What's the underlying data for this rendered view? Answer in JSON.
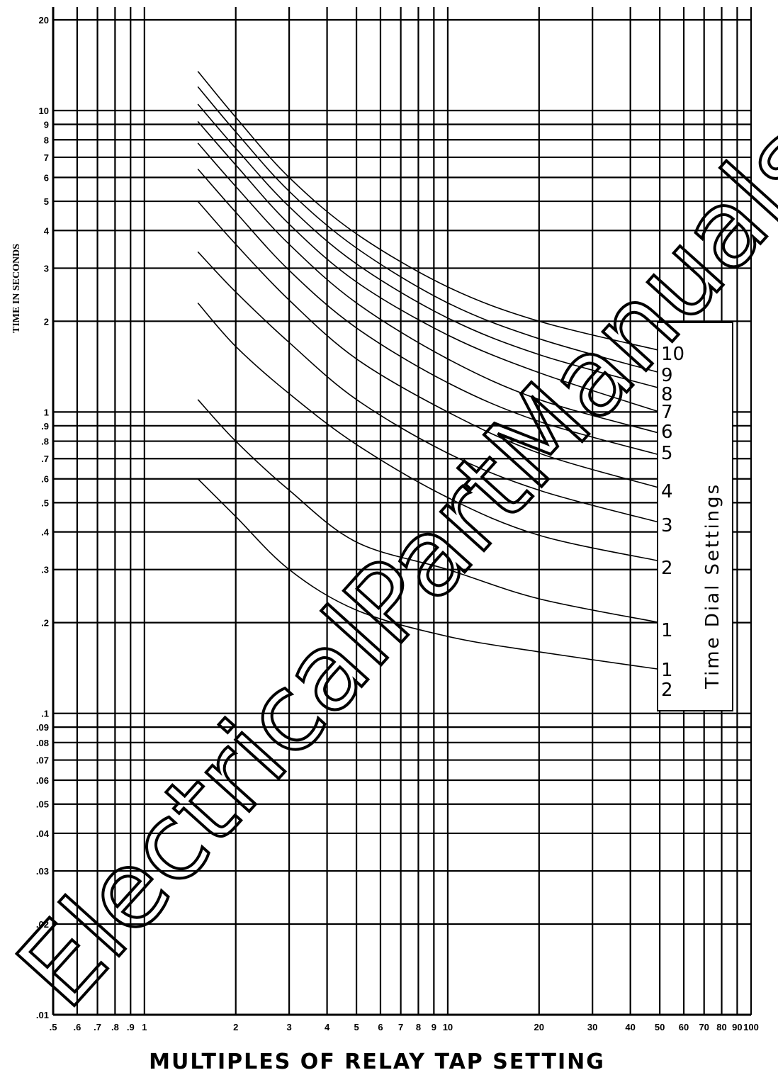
{
  "chart_data": {
    "type": "line",
    "title": "",
    "xlabel": "MULTIPLES OF RELAY TAP SETTING",
    "ylabel": "TIME IN SECONDS",
    "xscale": "log",
    "yscale": "log",
    "xlim": [
      0.5,
      100
    ],
    "ylim": [
      0.01,
      20
    ],
    "grid": true,
    "x_tick_labels": [
      ".5",
      ".6",
      ".7",
      ".8",
      ".9",
      "1",
      "2",
      "3",
      "4",
      "5",
      "6",
      "7",
      "8",
      "9",
      "10",
      "20",
      "30",
      "40",
      "50",
      "60",
      "70",
      "80",
      "90",
      "100"
    ],
    "y_tick_labels": [
      ".01",
      ".02",
      ".03",
      ".04",
      ".05",
      ".06",
      ".07",
      ".08",
      ".09",
      ".1",
      ".2",
      ".3",
      ".4",
      ".5",
      ".6",
      ".7",
      ".8",
      ".9",
      "1",
      "2",
      "3",
      "4",
      "5",
      "6",
      "7",
      "8",
      "9",
      "10",
      "20"
    ],
    "legend_title": "Time Dial Settings",
    "x": [
      1.5,
      2,
      3,
      5,
      10,
      20,
      50
    ],
    "series": [
      {
        "name": "10",
        "values": [
          13.5,
          9.5,
          6.0,
          3.9,
          2.6,
          2.0,
          1.6
        ]
      },
      {
        "name": "9",
        "values": [
          12.0,
          8.5,
          5.4,
          3.5,
          2.3,
          1.75,
          1.35
        ]
      },
      {
        "name": "8",
        "values": [
          10.5,
          7.5,
          4.8,
          3.1,
          2.05,
          1.55,
          1.2
        ]
      },
      {
        "name": "7",
        "values": [
          9.2,
          6.6,
          4.2,
          2.7,
          1.8,
          1.35,
          1.0
        ]
      },
      {
        "name": "6",
        "values": [
          7.8,
          5.6,
          3.6,
          2.3,
          1.5,
          1.1,
          0.85
        ]
      },
      {
        "name": "5",
        "values": [
          6.4,
          4.6,
          2.95,
          1.9,
          1.25,
          0.93,
          0.72
        ]
      },
      {
        "name": "4",
        "values": [
          5.0,
          3.6,
          2.35,
          1.5,
          1.0,
          0.73,
          0.56
        ]
      },
      {
        "name": "3",
        "values": [
          3.4,
          2.5,
          1.7,
          1.1,
          0.73,
          0.55,
          0.43
        ]
      },
      {
        "name": "2",
        "values": [
          2.3,
          1.65,
          1.15,
          0.78,
          0.52,
          0.39,
          0.32
        ]
      },
      {
        "name": "1",
        "values": [
          1.1,
          0.8,
          0.55,
          0.37,
          0.3,
          0.24,
          0.2
        ]
      },
      {
        "name": "1/2",
        "values": [
          0.6,
          0.45,
          0.3,
          0.22,
          0.18,
          0.16,
          0.14
        ]
      }
    ],
    "curve_labels": [
      "10",
      "9",
      "8",
      "7",
      "6",
      "5",
      "4",
      "3",
      "2",
      "1",
      "1",
      "2"
    ]
  },
  "watermark_text": "ElectricalPartManuals.com"
}
